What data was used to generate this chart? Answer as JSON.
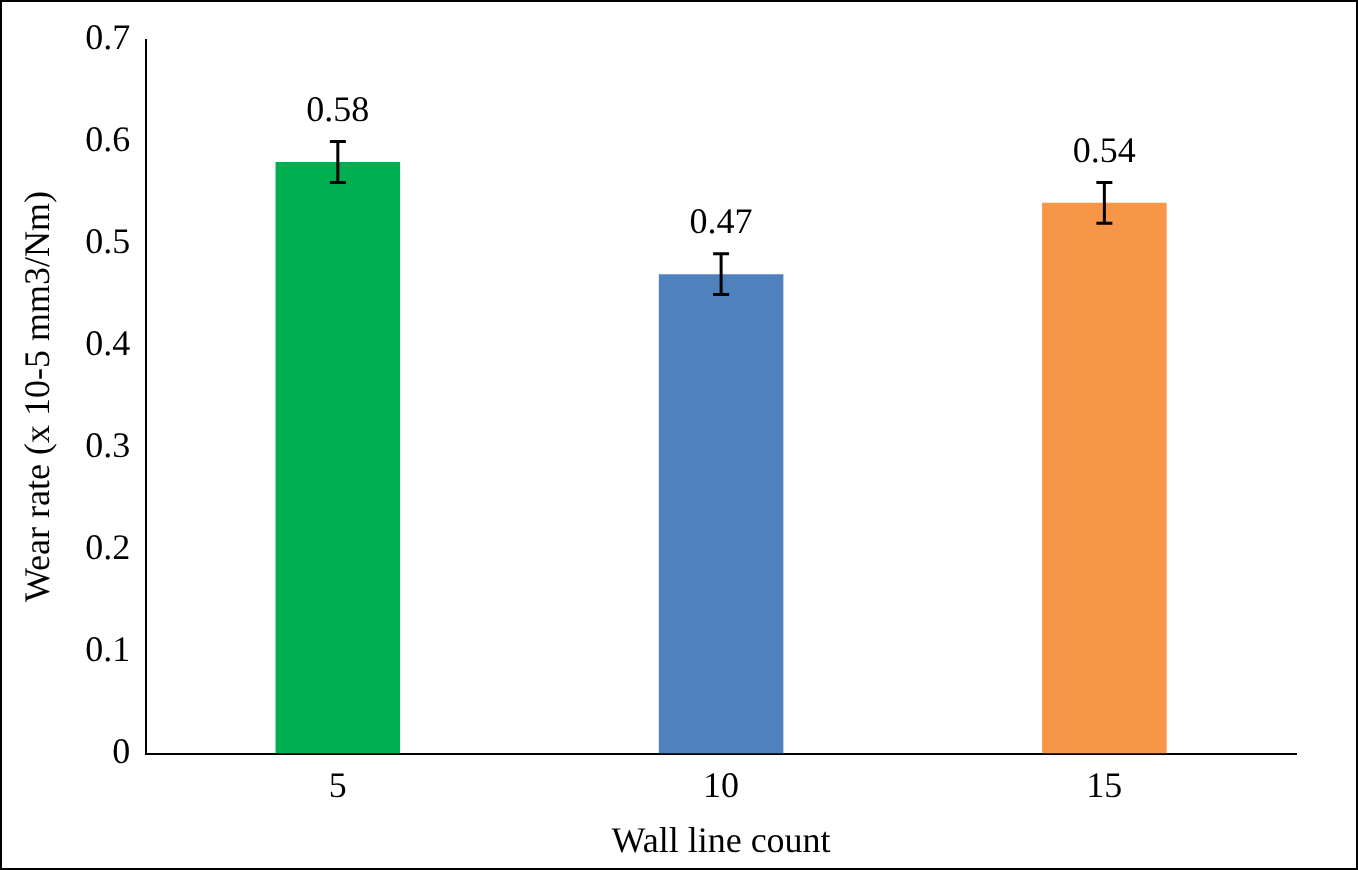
{
  "chart_data": {
    "type": "bar",
    "xlabel": "Wall line count",
    "ylabel": "Wear rate (x 10-5 mm3/Nm)",
    "categories": [
      "5",
      "10",
      "15"
    ],
    "values": [
      0.58,
      0.47,
      0.54
    ],
    "colors": [
      "#00b050",
      "#4f81bd",
      "#f79646"
    ],
    "errors": [
      0.02,
      0.02,
      0.02
    ],
    "data_labels": true,
    "ylim": [
      0,
      0.7
    ],
    "yticks": [
      0,
      0.1,
      0.2,
      0.3,
      0.4,
      0.5,
      0.6,
      0.7
    ],
    "grid": false,
    "legend": false
  }
}
